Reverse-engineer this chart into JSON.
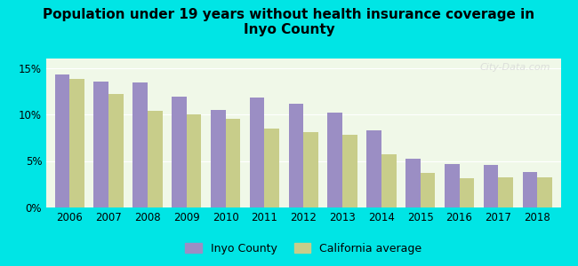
{
  "title": "Population under 19 years without health insurance coverage in\nInyo County",
  "years": [
    2006,
    2007,
    2008,
    2009,
    2010,
    2011,
    2012,
    2013,
    2014,
    2015,
    2016,
    2017,
    2018
  ],
  "inyo_county": [
    14.3,
    13.5,
    13.4,
    11.9,
    10.5,
    11.8,
    11.1,
    10.2,
    8.3,
    5.2,
    4.7,
    4.6,
    3.8
  ],
  "california_avg": [
    13.8,
    12.2,
    10.4,
    10.0,
    9.5,
    8.5,
    8.1,
    7.8,
    5.7,
    3.7,
    3.1,
    3.2,
    3.2
  ],
  "inyo_color": "#9b8ec4",
  "ca_color": "#c8cd8a",
  "background_outer": "#00e5e5",
  "background_inner": "#f0f8e8",
  "ylim": [
    0,
    16
  ],
  "yticks": [
    0,
    5,
    10,
    15
  ],
  "ytick_labels": [
    "0%",
    "5%",
    "10%",
    "15%"
  ],
  "bar_width": 0.38,
  "legend_inyo": "Inyo County",
  "legend_ca": "California average",
  "watermark": "City-Data.com"
}
